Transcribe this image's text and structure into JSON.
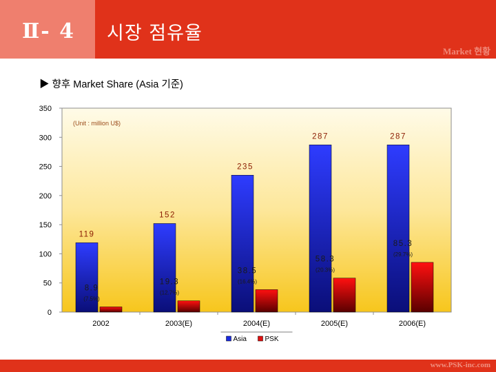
{
  "header": {
    "section_number": "Ⅱ- 4",
    "title": "시장 점유율",
    "watermark": "Market 현황"
  },
  "subtitle": "▶ 향후 Market Share (Asia 기준)",
  "footer": {
    "url": "www.PSK-inc.com"
  },
  "colors": {
    "header": "#e0321a",
    "asia": "#1a2be0",
    "psk": "#c00000"
  },
  "chart_data": {
    "type": "bar",
    "title": "향후 Market Share (Asia 기준)",
    "unit_note": "(Unit : million U$)",
    "categories": [
      "2002",
      "2003(E)",
      "2004(E)",
      "2005(E)",
      "2006(E)"
    ],
    "series": [
      {
        "name": "Asia",
        "values": [
          119,
          152,
          235,
          287,
          287
        ],
        "labels": [
          "119",
          "152",
          "235",
          "287",
          "287"
        ]
      },
      {
        "name": "PSK",
        "values": [
          8.9,
          19.3,
          38.5,
          58.3,
          85.3
        ],
        "labels": [
          "8.9",
          "19.3",
          "38.5",
          "58.3",
          "85.3"
        ],
        "shares": [
          "(7.5%)",
          "(12.7%)",
          "(16.4%)",
          "(20.3%)",
          "(29.7%)"
        ]
      }
    ],
    "ylim": [
      0,
      350
    ],
    "yticks": [
      "0",
      "50",
      "100",
      "150",
      "200",
      "250",
      "300",
      "350"
    ],
    "legend": "bottom-center",
    "xlabel": "",
    "ylabel": ""
  }
}
